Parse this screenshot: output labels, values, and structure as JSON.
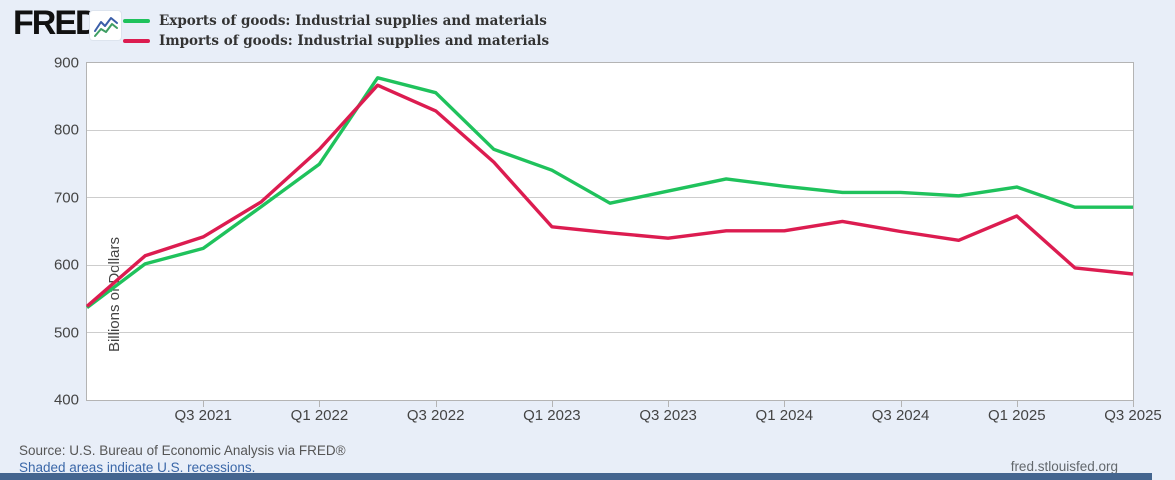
{
  "header": {
    "logo_text": "FRED",
    "logo_registered": "®"
  },
  "chart_data": {
    "type": "line",
    "title": "",
    "ylabel": "Billions of Dollars",
    "ylim": [
      400,
      900
    ],
    "y_ticks": [
      400,
      500,
      600,
      700,
      800,
      900
    ],
    "grid": true,
    "legend_position": "top-left",
    "x": [
      "Q1 2021",
      "Q2 2021",
      "Q3 2021",
      "Q4 2021",
      "Q1 2022",
      "Q2 2022",
      "Q3 2022",
      "Q4 2022",
      "Q1 2023",
      "Q2 2023",
      "Q3 2023",
      "Q4 2023",
      "Q1 2024",
      "Q2 2024",
      "Q3 2024",
      "Q4 2024",
      "Q1 2025",
      "Q2 2025",
      "Q3 2025"
    ],
    "x_tick_labels": [
      "Q3 2021",
      "Q1 2022",
      "Q3 2022",
      "Q1 2023",
      "Q3 2023",
      "Q1 2024",
      "Q3 2024",
      "Q1 2025",
      "Q3 2025"
    ],
    "series": [
      {
        "name": "Exports of goods: Industrial supplies and materials",
        "color": "#1fc25c",
        "values": [
          537,
          602,
          625,
          687,
          750,
          878,
          856,
          772,
          741,
          692,
          710,
          728,
          717,
          708,
          708,
          703,
          716,
          686,
          686
        ]
      },
      {
        "name": "Imports of goods: Industrial supplies and materials",
        "color": "#dc1c50",
        "values": [
          539,
          614,
          642,
          694,
          772,
          867,
          829,
          753,
          657,
          648,
          640,
          651,
          651,
          665,
          650,
          637,
          673,
          596,
          587
        ]
      }
    ]
  },
  "footer": {
    "source": "Source: U.S. Bureau of Economic Analysis via FRED®",
    "recession_note": "Shaded areas indicate U.S. recessions.",
    "site": "fred.stlouisfed.org"
  },
  "colors": {
    "export_line": "#1fc25c",
    "import_line": "#dc1c50",
    "background": "#e8eef8",
    "plot_background": "#ffffff",
    "gridline": "#cdcdcd",
    "axis_text": "#444444",
    "link_blue": "#3a67a8",
    "bottom_bar": "#44658f"
  }
}
